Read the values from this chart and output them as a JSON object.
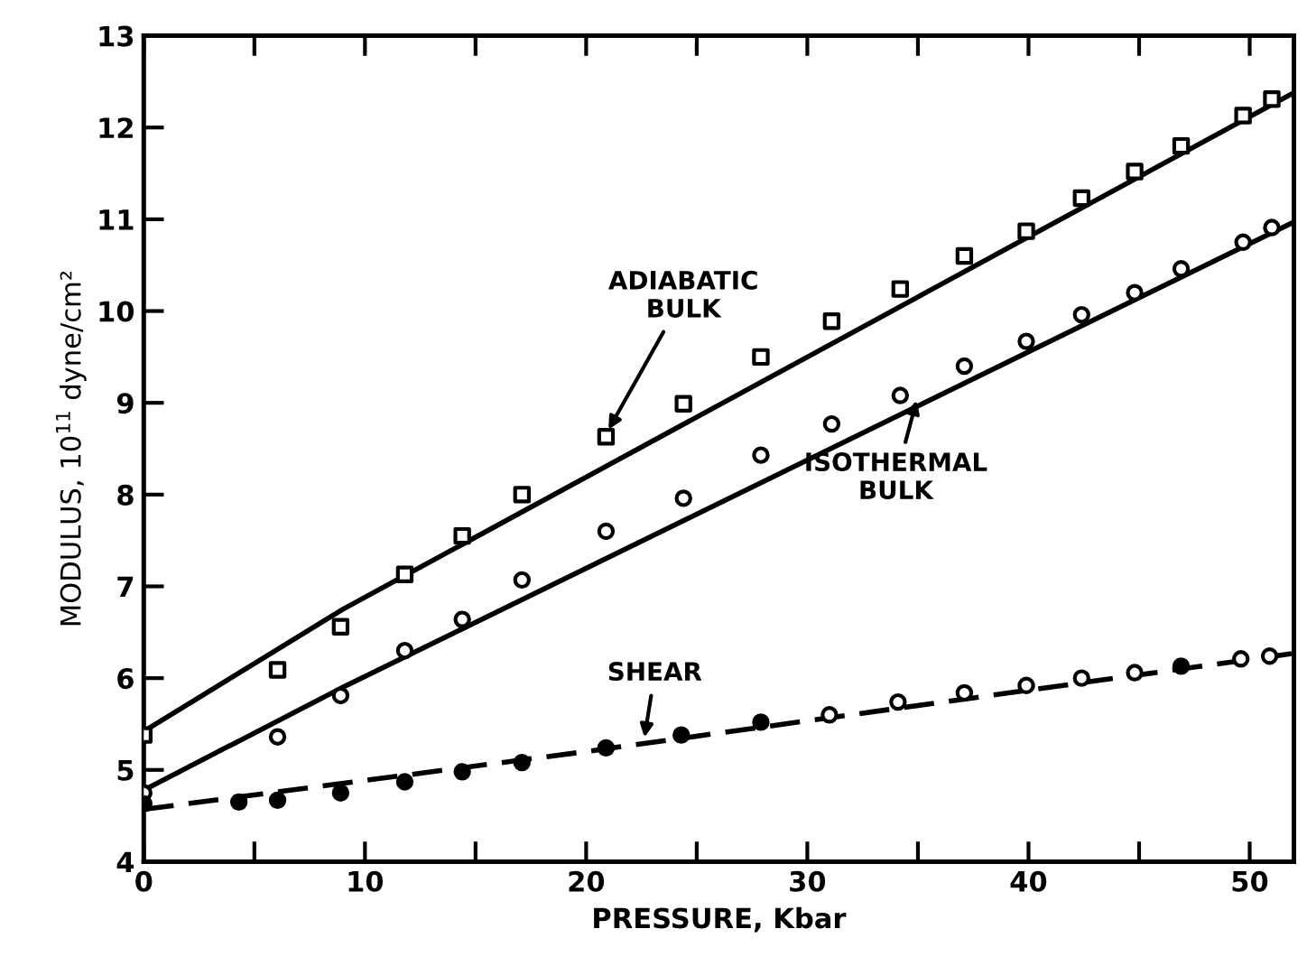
{
  "chart_data": {
    "type": "scatter",
    "xlabel": "PRESSURE, Kbar",
    "ylabel": "MODULUS, 10$^{11}$ dyne/cm²",
    "xlim": [
      0,
      52
    ],
    "ylim": [
      4,
      13
    ],
    "xticks": [
      0,
      {
        "value": 5,
        "label": null
      },
      10,
      {
        "value": 15,
        "label": null
      },
      20,
      {
        "value": 25,
        "label": null
      },
      30,
      {
        "value": 35,
        "label": null
      },
      40,
      {
        "value": 45,
        "label": null
      },
      50
    ],
    "yticks": [
      4,
      5,
      6,
      7,
      8,
      9,
      10,
      11,
      12,
      13
    ],
    "grid": false,
    "legend": false,
    "series": [
      {
        "marker": "square",
        "color": "#000000",
        "x": [
          0,
          6.05,
          8.9,
          11.8,
          14.4,
          17.1,
          20.9,
          24.4,
          27.9,
          31.1,
          34.2,
          37.1,
          39.9,
          42.4,
          44.8,
          46.9,
          49.7,
          51.0
        ],
        "values": [
          5.38,
          6.09,
          6.56,
          7.13,
          7.55,
          8.0,
          8.63,
          8.99,
          9.5,
          9.89,
          10.24,
          10.6,
          10.87,
          11.23,
          11.52,
          11.8,
          12.13,
          12.31
        ]
      },
      {
        "marker": "circle",
        "color": "#000000",
        "x": [
          0,
          6.05,
          8.9,
          11.8,
          14.4,
          17.1,
          20.9,
          24.4,
          27.9,
          31.1,
          34.2,
          37.1,
          39.9,
          42.4,
          44.8,
          46.9,
          49.7,
          51.0
        ],
        "values": [
          4.75,
          5.36,
          5.81,
          6.3,
          6.64,
          7.07,
          7.6,
          7.96,
          8.43,
          8.77,
          9.08,
          9.4,
          9.67,
          9.96,
          10.2,
          10.46,
          10.75,
          10.91
        ]
      },
      {
        "marker": "circle",
        "color": "#000000",
        "x": [
          0,
          4.3,
          6.05,
          8.9,
          11.8,
          14.4,
          17.1,
          20.9,
          24.3,
          27.9,
          31.0,
          34.1,
          37.1,
          39.9,
          42.4,
          44.8,
          46.9,
          49.6,
          50.9
        ],
        "values": [
          4.63,
          4.65,
          4.67,
          4.75,
          4.87,
          4.98,
          5.08,
          5.24,
          5.38,
          5.52,
          5.6,
          5.74,
          5.84,
          5.92,
          6.0,
          6.06,
          6.13,
          6.21,
          6.24
        ],
        "colors": [
          "#000000",
          "#000000",
          "#000000",
          "#000000",
          "#000000",
          "#000000",
          "#000000",
          "#000000",
          "#000000",
          "#000000",
          "#ffffff",
          "#ffffff",
          "#ffffff",
          "#ffffff",
          "#ffffff",
          "#ffffff",
          "#000000",
          "#ffffff",
          "#ffffff"
        ]
      },
      {
        "type": "line",
        "marker": "none",
        "line_style": "solid",
        "color": "#000000",
        "x": [
          0,
          9,
          52
        ],
        "values": [
          5.42,
          6.75,
          12.38
        ]
      },
      {
        "type": "line",
        "marker": "none",
        "line_style": "solid",
        "color": "#000000",
        "x": [
          0,
          9,
          52
        ],
        "values": [
          4.78,
          5.9,
          10.97
        ]
      },
      {
        "type": "line",
        "marker": "none",
        "line_style": "dashed",
        "color": "#000000",
        "x": [
          0,
          20,
          52
        ],
        "values": [
          4.57,
          5.2,
          6.27
        ]
      }
    ],
    "annotations": [
      {
        "text": "ADIABATIC\nBULK",
        "x": 20.9,
        "y": 8.66
      },
      {
        "text": "ISOTHERMAL\nBULK",
        "x": 35,
        "y": 9.08
      },
      {
        "text": "SHEAR",
        "x": 22.6,
        "y": 5.3
      }
    ]
  }
}
